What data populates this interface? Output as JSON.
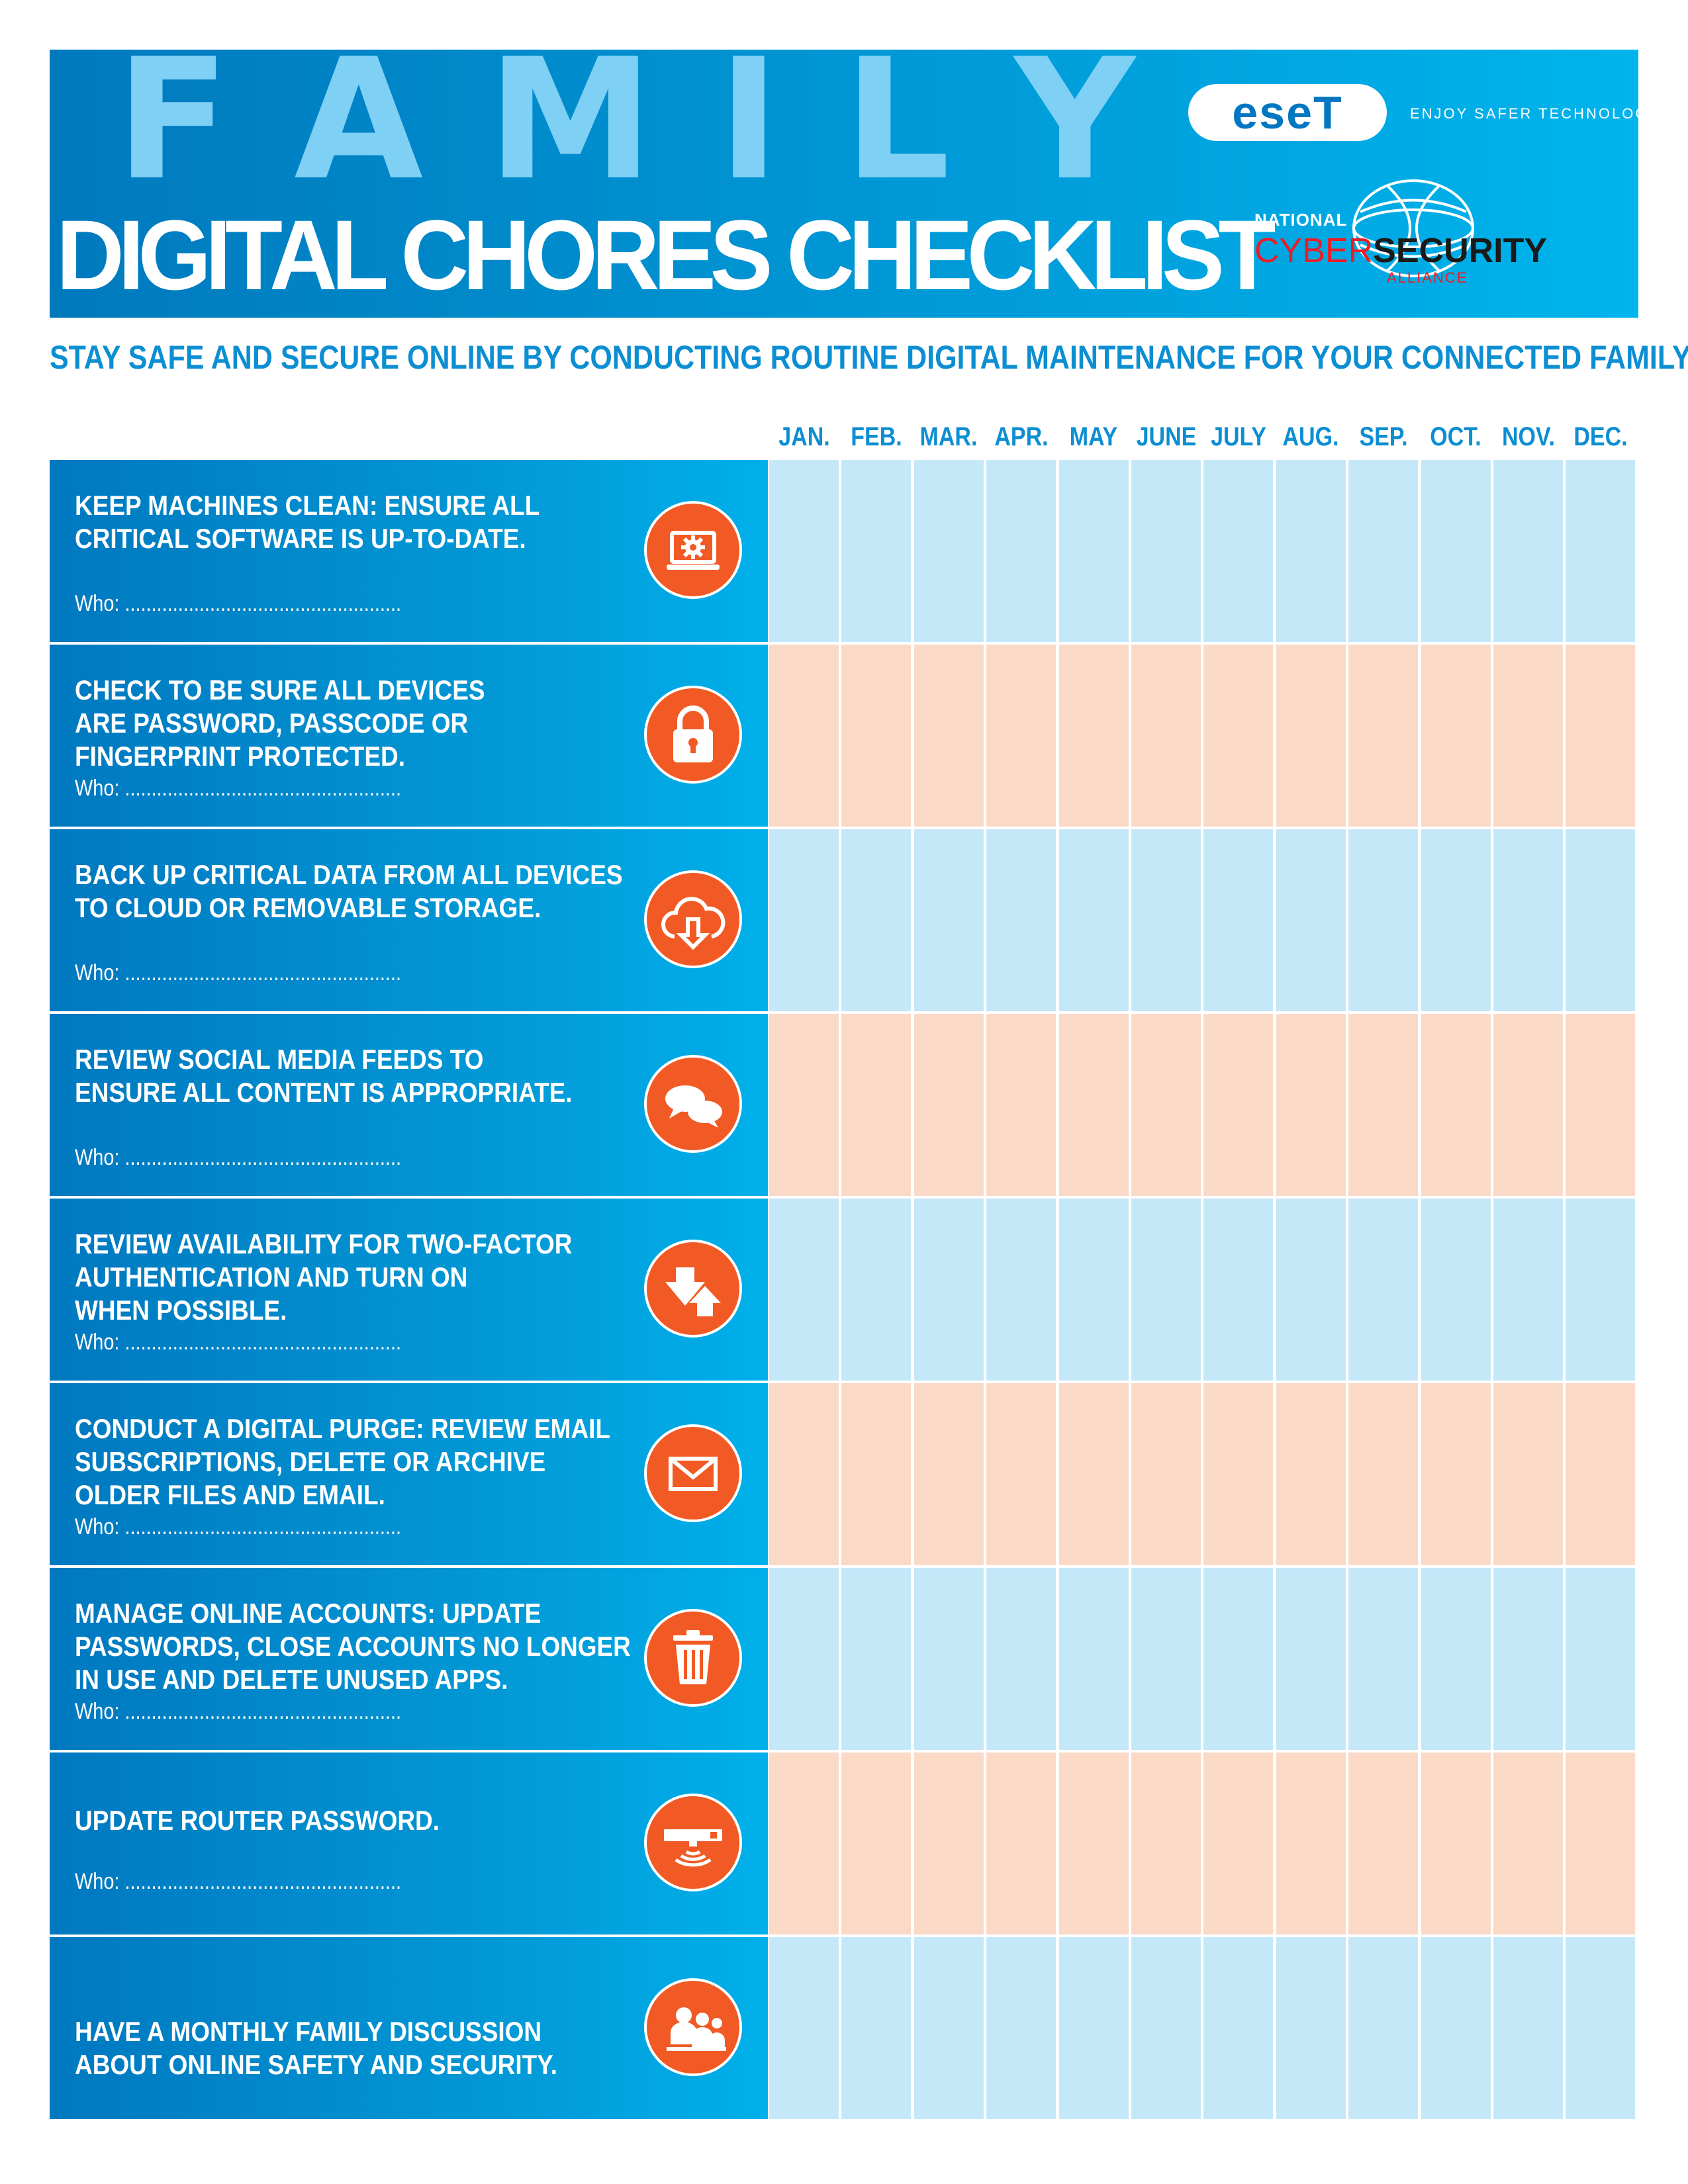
{
  "header": {
    "family_letters": [
      "F",
      "A",
      "M",
      "I",
      "L",
      "Y"
    ],
    "title": "DIGITAL CHORES CHECKLIST",
    "eset_logo": "eseT",
    "eset_tagline": "ENJOY SAFER TECHNOLOGY®",
    "ncsa": {
      "national": "NATIONAL",
      "cyber": "CYBER",
      "security": "SECURITY",
      "alliance": "ALLIANCE"
    }
  },
  "subtitle": "STAY SAFE AND SECURE ONLINE BY CONDUCTING ROUTINE DIGITAL MAINTENANCE FOR YOUR CONNECTED FAMILY.",
  "months": [
    "JAN.",
    "FEB.",
    "MAR.",
    "APR.",
    "MAY",
    "JUNE",
    "JULY",
    "AUG.",
    "SEP.",
    "OCT.",
    "NOV.",
    "DEC."
  ],
  "who_label": "Who: ....................................................",
  "colors": {
    "icon": "#f15a24",
    "row_blue": "#c5e8f8",
    "row_peach": "#fbd9c7",
    "accent": "#0c8ed3"
  },
  "tasks": [
    {
      "lines": [
        "KEEP MACHINES CLEAN: ENSURE ALL",
        "CRITICAL SOFTWARE IS UP-TO-DATE."
      ],
      "icon": "laptop-gear-icon",
      "has_who": true
    },
    {
      "lines": [
        "CHECK TO BE SURE ALL DEVICES",
        "ARE PASSWORD, PASSCODE OR",
        "FINGERPRINT PROTECTED."
      ],
      "icon": "padlock-icon",
      "has_who": true
    },
    {
      "lines": [
        "BACK UP CRITICAL DATA FROM ALL DEVICES",
        "TO CLOUD OR REMOVABLE STORAGE."
      ],
      "icon": "cloud-download-icon",
      "has_who": true
    },
    {
      "lines": [
        "REVIEW SOCIAL MEDIA FEEDS TO",
        "ENSURE ALL CONTENT IS APPROPRIATE."
      ],
      "icon": "chat-bubbles-icon",
      "has_who": true
    },
    {
      "lines": [
        "REVIEW AVAILABILITY FOR TWO-FACTOR",
        "AUTHENTICATION AND TURN ON",
        "WHEN POSSIBLE."
      ],
      "icon": "arrows-down-up-icon",
      "has_who": true
    },
    {
      "lines": [
        "CONDUCT A DIGITAL PURGE: REVIEW EMAIL",
        "SUBSCRIPTIONS, DELETE OR ARCHIVE",
        "OLDER FILES AND EMAIL."
      ],
      "icon": "envelope-icon",
      "has_who": true
    },
    {
      "lines": [
        "MANAGE ONLINE ACCOUNTS: UPDATE",
        "PASSWORDS, CLOSE ACCOUNTS NO LONGER",
        "IN USE AND DELETE UNUSED APPS."
      ],
      "icon": "trash-can-icon",
      "has_who": true
    },
    {
      "lines": [
        "UPDATE ROUTER PASSWORD."
      ],
      "icon": "router-wifi-icon",
      "has_who": true
    },
    {
      "lines": [
        "HAVE A MONTHLY FAMILY DISCUSSION",
        "ABOUT ONLINE SAFETY AND SECURITY."
      ],
      "icon": "family-group-icon",
      "has_who": false
    }
  ]
}
